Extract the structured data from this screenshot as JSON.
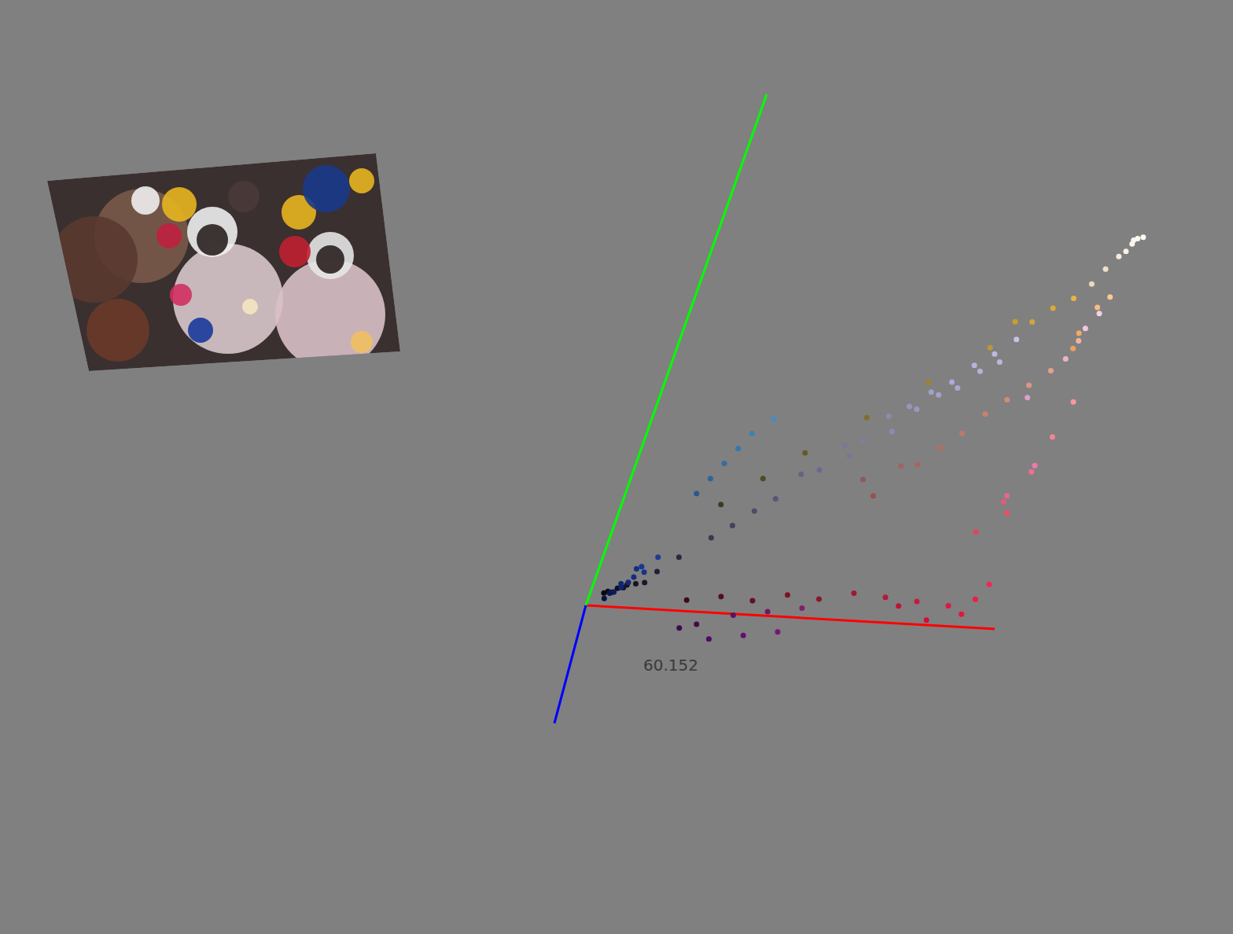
{
  "chart_data": {
    "type": "scatter3d",
    "x": [
      10,
      15,
      20,
      8,
      25,
      30,
      12,
      18,
      15,
      10,
      20,
      12,
      25,
      18,
      22,
      10,
      30,
      14,
      8,
      20,
      40,
      50,
      60,
      45,
      70,
      55,
      60,
      80,
      100,
      130,
      160,
      190,
      210,
      220,
      230,
      200,
      60,
      80,
      100,
      120,
      140,
      160,
      180,
      200,
      220,
      235,
      240,
      230,
      210,
      190,
      70,
      90,
      100,
      60,
      80,
      110,
      120,
      130,
      220,
      230,
      240,
      235,
      245,
      250,
      230,
      240,
      100,
      120,
      140,
      160,
      170,
      180,
      150,
      130,
      110,
      90,
      80,
      190,
      200,
      175,
      140,
      160,
      180,
      200,
      210,
      190,
      170,
      150,
      220,
      230,
      240,
      240,
      245,
      250,
      240,
      240,
      235,
      245,
      220,
      250,
      252,
      255,
      248,
      245,
      250,
      240,
      235,
      165,
      185,
      155,
      145,
      125,
      195,
      60,
      45,
      70,
      35
    ],
    "y": [
      12,
      15,
      18,
      10,
      20,
      22,
      14,
      20,
      35,
      30,
      45,
      28,
      50,
      40,
      55,
      25,
      60,
      38,
      20,
      48,
      90,
      110,
      130,
      100,
      140,
      120,
      60,
      75,
      90,
      110,
      130,
      150,
      165,
      170,
      180,
      160,
      10,
      15,
      15,
      20,
      20,
      25,
      25,
      25,
      25,
      30,
      40,
      20,
      15,
      20,
      10,
      20,
      15,
      10,
      10,
      25,
      20,
      30,
      70,
      90,
      110,
      80,
      130,
      150,
      100,
      120,
      100,
      120,
      140,
      160,
      170,
      180,
      150,
      125,
      105,
      85,
      75,
      185,
      195,
      165,
      90,
      100,
      110,
      130,
      140,
      120,
      100,
      80,
      150,
      160,
      180,
      170,
      190,
      200,
      160,
      200,
      180,
      210,
      160,
      245,
      250,
      252,
      240,
      235,
      248,
      225,
      215,
      160,
      175,
      150,
      135,
      115,
      180,
      55,
      40,
      65,
      30
    ],
    "z": [
      20,
      25,
      30,
      15,
      35,
      40,
      30,
      45,
      110,
      100,
      130,
      90,
      140,
      120,
      150,
      80,
      150,
      115,
      70,
      125,
      140,
      160,
      180,
      150,
      190,
      170,
      30,
      35,
      40,
      45,
      50,
      55,
      60,
      50,
      70,
      40,
      20,
      30,
      35,
      40,
      45,
      50,
      55,
      60,
      65,
      70,
      80,
      60,
      55,
      50,
      70,
      90,
      110,
      80,
      100,
      100,
      120,
      110,
      100,
      120,
      140,
      100,
      150,
      160,
      150,
      170,
      130,
      150,
      170,
      200,
      220,
      225,
      190,
      160,
      140,
      120,
      105,
      220,
      230,
      210,
      90,
      100,
      100,
      110,
      120,
      110,
      95,
      80,
      130,
      140,
      160,
      100,
      130,
      150,
      90,
      220,
      200,
      230,
      200,
      230,
      240,
      245,
      225,
      215,
      235,
      200,
      190,
      205,
      215,
      195,
      180,
      150,
      215,
      80,
      60,
      95,
      50
    ],
    "xlim": [
      0,
      255
    ],
    "ylim": [
      0,
      255
    ],
    "zlim": [
      0,
      255
    ],
    "tick_labels": false,
    "annotation": "60.152"
  }
}
